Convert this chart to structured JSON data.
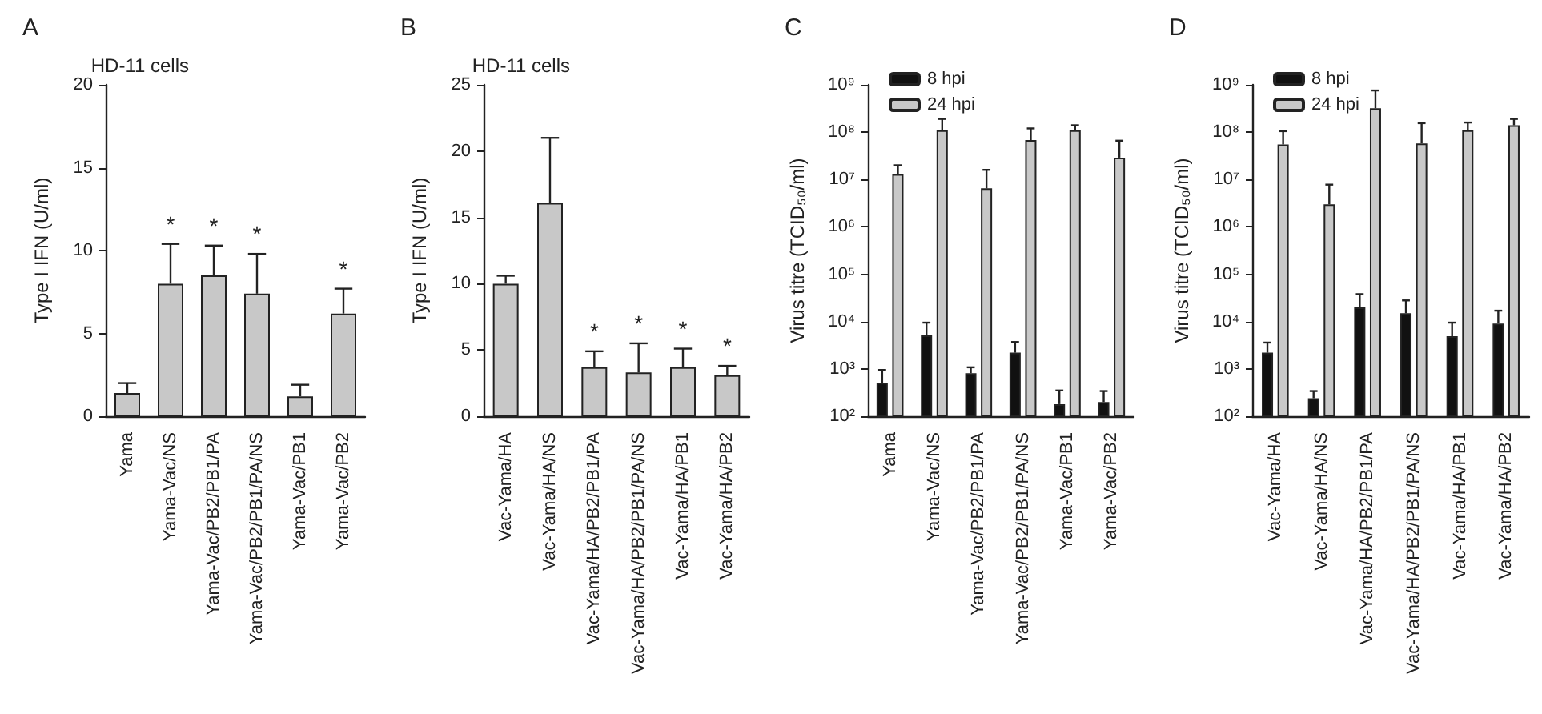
{
  "chart_data": [
    {
      "type": "bar",
      "title": "HD-11 cells",
      "ylabel": "Type I IFN (U/ml)",
      "categories": [
        "Yama",
        "Yama-Vac/NS",
        "Yama-Vac/PB2/PB1/PA",
        "Yama-Vac/PB2/PB1/PA/NS",
        "Yama-Vac/PB1",
        "Yama-Vac/PB2"
      ],
      "series": [
        {
          "color": "#c8c8c8",
          "value_labels": [
            null,
            "*",
            "*",
            "*",
            null,
            "*"
          ],
          "values": [
            1.4,
            8.0,
            8.5,
            7.4,
            1.2,
            6.2
          ],
          "errors": [
            [
              1.4,
              2.0
            ],
            [
              8.0,
              10.4
            ],
            [
              8.5,
              10.3
            ],
            [
              7.4,
              9.8
            ],
            [
              1.2,
              1.9
            ],
            [
              6.2,
              7.7
            ]
          ]
        }
      ],
      "ylim": [
        0,
        20
      ],
      "yticks": [
        0,
        5,
        10,
        15,
        20
      ],
      "grid": false,
      "legend": false,
      "annotations": [
        "A"
      ]
    },
    {
      "type": "bar",
      "title": "HD-11 cells",
      "ylabel": "Type I IFN (U/ml)",
      "categories": [
        "Vac-Yama/HA",
        "Vac-Yama/HA/NS",
        "Vac-Yama/HA/PB2/PB1/PA",
        "Vac-Yama/HA/PB2/PB1/PA/NS",
        "Vac-Yama/HA/PB1",
        "Vac-Yama/HA/PB2"
      ],
      "series": [
        {
          "color": "#c8c8c8",
          "value_labels": [
            null,
            null,
            "*",
            "*",
            "*",
            "*"
          ],
          "values": [
            10.0,
            16.1,
            3.7,
            3.3,
            3.7,
            3.1
          ],
          "errors": [
            [
              10.0,
              10.6
            ],
            [
              16.1,
              21.0
            ],
            [
              3.7,
              4.9
            ],
            [
              3.3,
              5.5
            ],
            [
              3.7,
              5.1
            ],
            [
              3.1,
              3.8
            ]
          ]
        }
      ],
      "ylim": [
        0,
        25
      ],
      "yticks": [
        0,
        5,
        10,
        15,
        20,
        25
      ],
      "grid": false,
      "legend": false,
      "annotations": [
        "B"
      ]
    },
    {
      "type": "bar",
      "ylabel": "Virus titre (TCID₅₀/ml)",
      "categories": [
        "Yama",
        "Yama-Vac/NS",
        "Yama-Vac/PB2/PB1/PA",
        "Yama-Vac/PB2/PB1/PA/NS",
        "Yama-Vac/PB1",
        "Yama-Vac/PB2"
      ],
      "series": [
        {
          "name": "8 hpi",
          "color": "#111111",
          "values": [
            510,
            5100,
            810,
            2200,
            180,
            200
          ],
          "errors": [
            [
              510,
              950
            ],
            [
              5100,
              9500
            ],
            [
              810,
              1080
            ],
            [
              2200,
              3700
            ],
            [
              180,
              350
            ],
            [
              200,
              340
            ]
          ]
        },
        {
          "name": "24 hpi",
          "color": "#c8c8c8",
          "values": [
            13000000,
            110000000,
            6500000,
            68000000,
            110000000,
            29000000
          ],
          "errors": [
            [
              13000000,
              20000000
            ],
            [
              110000000,
              190000000
            ],
            [
              6500000,
              16000000
            ],
            [
              68000000,
              120000000
            ],
            [
              110000000,
              140000000
            ],
            [
              29000000,
              66000000
            ]
          ]
        }
      ],
      "log": true,
      "ylim": [
        100,
        1000000000
      ],
      "yticks": [
        {
          "value": 100,
          "label": "10²"
        },
        {
          "value": 1000,
          "label": "10³"
        },
        {
          "value": 10000,
          "label": "10⁴"
        },
        {
          "value": 100000,
          "label": "10⁵"
        },
        {
          "value": 1000000,
          "label": "10⁶"
        },
        {
          "value": 10000000,
          "label": "10⁷"
        },
        {
          "value": 100000000,
          "label": "10⁸"
        },
        {
          "value": 1000000000,
          "label": "10⁹"
        }
      ],
      "grid": false,
      "legend": "top left",
      "annotations": [
        "C"
      ]
    },
    {
      "type": "bar",
      "ylabel": "Virus titre (TCID₅₀/ml)",
      "categories": [
        "Vac-Yama/HA",
        "Vac-Yama/HA/NS",
        "Vac-Yama/HA/PB2/PB1/PA",
        "Vac-Yama/HA/PB2/PB1/PA/NS",
        "Vac-Yama/HA/PB1",
        "Vac-Yama/HA/PB2"
      ],
      "series": [
        {
          "name": "8 hpi",
          "color": "#111111",
          "values": [
            2200,
            240,
            20000,
            15000,
            4900,
            9100
          ],
          "errors": [
            [
              2200,
              3600
            ],
            [
              240,
              340
            ],
            [
              20000,
              38000
            ],
            [
              15000,
              28000
            ],
            [
              4900,
              9500
            ],
            [
              9100,
              17000
            ]
          ]
        },
        {
          "name": "24 hpi",
          "color": "#c8c8c8",
          "values": [
            55000000,
            3000000,
            320000000,
            58000000,
            110000000,
            140000000
          ],
          "errors": [
            [
              55000000,
              105000000
            ],
            [
              3000000,
              7800000
            ],
            [
              320000000,
              760000000
            ],
            [
              58000000,
              155000000
            ],
            [
              110000000,
              160000000
            ],
            [
              140000000,
              190000000
            ]
          ]
        }
      ],
      "log": true,
      "ylim": [
        100,
        1000000000
      ],
      "yticks": [
        {
          "value": 100,
          "label": "10²"
        },
        {
          "value": 1000,
          "label": "10³"
        },
        {
          "value": 10000,
          "label": "10⁴"
        },
        {
          "value": 100000,
          "label": "10⁵"
        },
        {
          "value": 1000000,
          "label": "10⁶"
        },
        {
          "value": 10000000,
          "label": "10⁷"
        },
        {
          "value": 100000000,
          "label": "10⁸"
        },
        {
          "value": 1000000000,
          "label": "10⁹"
        }
      ],
      "grid": false,
      "legend": "top left",
      "annotations": [
        "D"
      ]
    }
  ]
}
